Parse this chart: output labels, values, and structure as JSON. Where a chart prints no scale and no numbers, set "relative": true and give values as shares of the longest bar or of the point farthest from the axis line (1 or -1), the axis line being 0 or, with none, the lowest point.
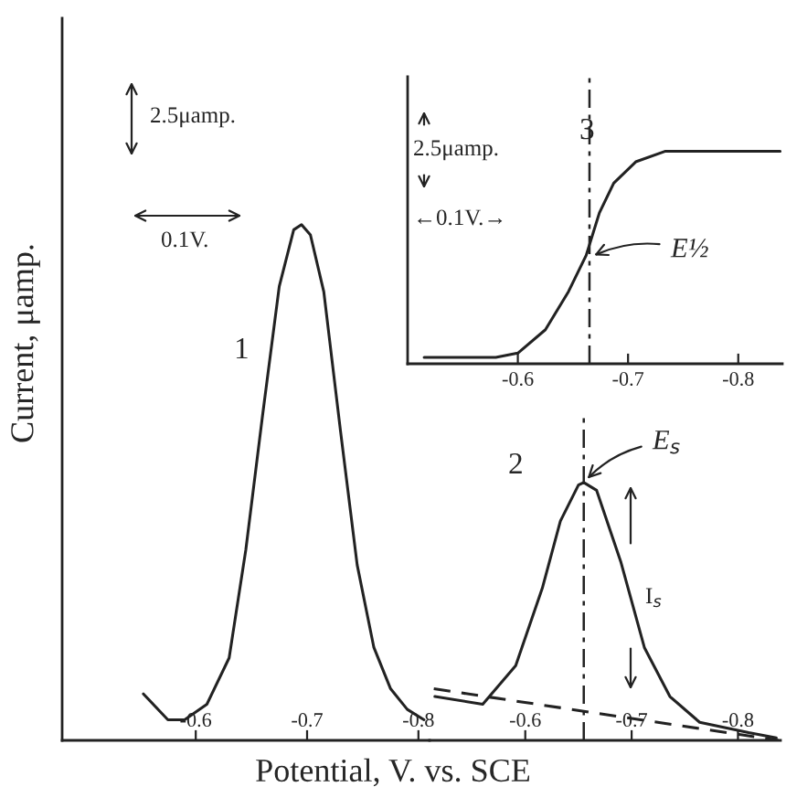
{
  "chart_data": [
    {
      "type": "line",
      "relative": true,
      "xlabel": "Potential, V. vs. SCE",
      "ylabel": "Current, μamp.",
      "xlim": [
        -0.48,
        -0.81
      ],
      "xticks": [
        -0.6,
        -0.7,
        -0.8
      ],
      "grid": false,
      "marker": "none",
      "annotations": [
        "2.5μamp.",
        "0.1V.",
        "1"
      ],
      "series": [
        {
          "color": "#222222",
          "x": [
            -0.553,
            -0.575,
            -0.59,
            -0.61,
            -0.63,
            -0.645,
            -0.66,
            -0.675,
            -0.688,
            -0.695,
            -0.703,
            -0.715,
            -0.73,
            -0.745,
            -0.76,
            -0.775,
            -0.79,
            -0.805
          ],
          "values": [
            0.09,
            0.04,
            0.04,
            0.07,
            0.16,
            0.37,
            0.63,
            0.88,
            0.99,
            1.0,
            0.98,
            0.87,
            0.6,
            0.34,
            0.18,
            0.1,
            0.06,
            0.04
          ]
        }
      ]
    },
    {
      "type": "line",
      "relative": true,
      "xlim": [
        -0.51,
        -0.84
      ],
      "xticks": [
        -0.6,
        -0.7,
        -0.8
      ],
      "grid": false,
      "marker": "none",
      "annotations": [
        "2",
        {
          "text": "E$_{s}$",
          "x": -0.655,
          "y": 1.0
        },
        "I$_{s}$"
      ],
      "ref_lines": [
        {
          "axis": "x",
          "value": -0.655,
          "line_style": "dashdot",
          "color": "#222222"
        }
      ],
      "series": [
        {
          "color": "#222222",
          "x": [
            -0.515,
            -0.56,
            -0.591,
            -0.616,
            -0.633,
            -0.65,
            -0.655,
            -0.667,
            -0.69,
            -0.712,
            -0.736,
            -0.764,
            -0.81,
            -0.836
          ],
          "values": [
            0.17,
            0.14,
            0.29,
            0.59,
            0.85,
            0.99,
            1.0,
            0.97,
            0.69,
            0.36,
            0.17,
            0.07,
            0.03,
            0.01
          ]
        },
        {
          "color": "#222222",
          "line_style": "dashed",
          "x": [
            -0.514,
            -0.838
          ],
          "values": [
            0.2,
            0.0
          ]
        }
      ]
    },
    {
      "type": "line",
      "relative": true,
      "xlim": [
        -0.5,
        -0.84
      ],
      "xticks": [
        -0.6,
        -0.7,
        -0.8
      ],
      "grid": false,
      "marker": "none",
      "annotations": [
        "3",
        "2.5μamp.",
        "←0.1V.→",
        {
          "text": "E½",
          "x": -0.665,
          "y": 0.5
        }
      ],
      "ref_lines": [
        {
          "axis": "x",
          "value": -0.665,
          "line_style": "dashdot",
          "color": "#222222"
        }
      ],
      "series": [
        {
          "color": "#222222",
          "x": [
            -0.515,
            -0.58,
            -0.6,
            -0.625,
            -0.646,
            -0.662,
            -0.674,
            -0.687,
            -0.707,
            -0.734,
            -0.838
          ],
          "values": [
            0.03,
            0.03,
            0.05,
            0.16,
            0.34,
            0.51,
            0.71,
            0.85,
            0.95,
            1.0,
            1.0
          ]
        }
      ]
    }
  ]
}
